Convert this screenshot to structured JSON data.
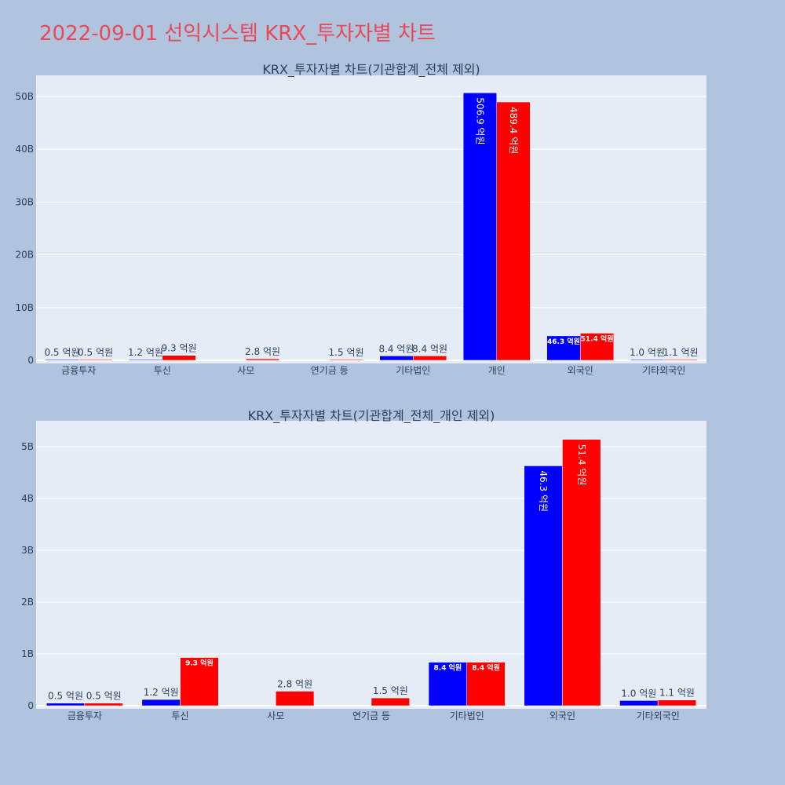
{
  "page_title": "2022-09-01 선익시스템 KRX_투자자별 차트",
  "colors": {
    "buy": "#0000ff",
    "sell": "#ff0000",
    "plot_bg": "#e5ecf6",
    "page_bg": "#b0c4de",
    "title": "#e8495a"
  },
  "chart_data": [
    {
      "type": "bar",
      "title": "KRX_투자자별 차트(기관합계_전체 제외)",
      "categories": [
        "금융투자",
        "투신",
        "사모",
        "연기금 등",
        "기타법인",
        "개인",
        "외국인",
        "기타외국인"
      ],
      "series": [
        {
          "values": [
            0.05,
            0.12,
            null,
            null,
            0.84,
            50.69,
            4.63,
            0.1
          ],
          "labels": [
            "0.5 억원",
            "1.2 억원",
            "",
            "",
            "8.4 억원",
            "506.9 억원",
            "46.3 억원",
            "1.0 억원"
          ]
        },
        {
          "values": [
            0.05,
            0.93,
            0.28,
            0.15,
            0.84,
            48.94,
            5.14,
            0.11
          ],
          "labels": [
            "0.5 억원",
            "9.3 억원",
            "2.8 억원",
            "1.5 억원",
            "8.4 억원",
            "489.4 억원",
            "51.4 억원",
            "1.1 억원"
          ]
        }
      ],
      "ylim": [
        0,
        54
      ],
      "yticks": [
        0,
        10,
        20,
        30,
        40,
        50
      ],
      "ytick_labels": [
        "0",
        "10B",
        "20B",
        "30B",
        "40B",
        "50B"
      ],
      "grid": true,
      "legend": "none"
    },
    {
      "type": "bar",
      "title": "KRX_투자자별 차트(기관합계_전체_개인 제외)",
      "categories": [
        "금융투자",
        "투신",
        "사모",
        "연기금 등",
        "기타법인",
        "외국인",
        "기타외국인"
      ],
      "series": [
        {
          "values": [
            0.05,
            0.12,
            null,
            null,
            0.84,
            4.63,
            0.1
          ],
          "labels": [
            "0.5 억원",
            "1.2 억원",
            "",
            "",
            "8.4 억원",
            "46.3 억원",
            "1.0 억원"
          ]
        },
        {
          "values": [
            0.05,
            0.93,
            0.28,
            0.15,
            0.84,
            5.14,
            0.11
          ],
          "labels": [
            "0.5 억원",
            "9.3 억원",
            "2.8 억원",
            "1.5 억원",
            "8.4 억원",
            "51.4 억원",
            "1.1 억원"
          ]
        }
      ],
      "ylim": [
        0,
        5.5
      ],
      "yticks": [
        0,
        1,
        2,
        3,
        4,
        5
      ],
      "ytick_labels": [
        "0",
        "1B",
        "2B",
        "3B",
        "4B",
        "5B"
      ],
      "grid": true,
      "legend": "none"
    }
  ]
}
